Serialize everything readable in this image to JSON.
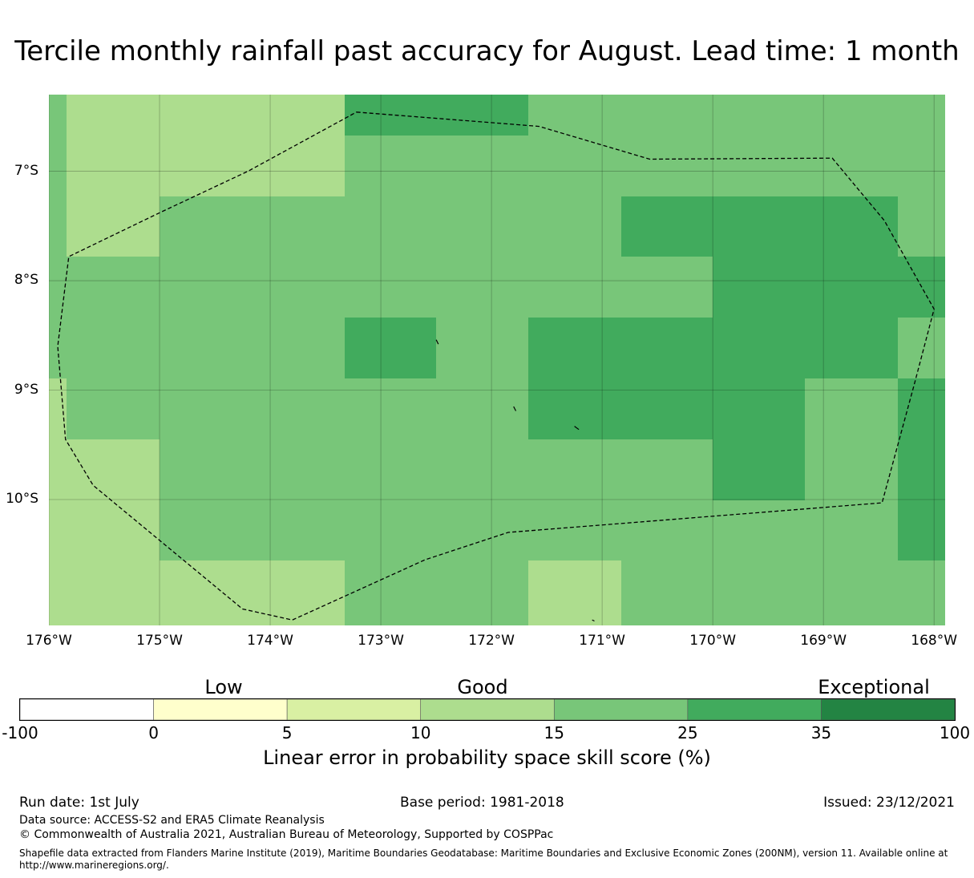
{
  "title": "Tercile monthly rainfall past accuracy for August. Lead time: 1 month",
  "map": {
    "lon_range": [
      -176,
      -167.9
    ],
    "lat_range": [
      -11.15,
      -6.3
    ],
    "lon_ticks": [
      {
        "value": -176,
        "label": "176°W"
      },
      {
        "value": -175,
        "label": "175°W"
      },
      {
        "value": -174,
        "label": "174°W"
      },
      {
        "value": -173,
        "label": "173°W"
      },
      {
        "value": -172,
        "label": "172°W"
      },
      {
        "value": -171,
        "label": "171°W"
      },
      {
        "value": -170,
        "label": "170°W"
      },
      {
        "value": -169,
        "label": "169°W"
      },
      {
        "value": -168,
        "label": "168°W"
      }
    ],
    "lat_ticks": [
      {
        "value": -7,
        "label": "7°S"
      },
      {
        "value": -8,
        "label": "8°S"
      },
      {
        "value": -9,
        "label": "9°S"
      },
      {
        "value": -10,
        "label": "10°S"
      }
    ],
    "grid_lon_edges": [
      -176,
      -175.84,
      -175,
      -174.17,
      -173.33,
      -172.5,
      -171.67,
      -170.83,
      -170,
      -169.17,
      -168.33,
      -167.9
    ],
    "grid_lat_edges": [
      -6.3,
      -6.67,
      -7.23,
      -7.78,
      -8.34,
      -8.89,
      -9.45,
      -10.01,
      -10.56,
      -11.15
    ],
    "grid_categories": [
      [
        4,
        3,
        3,
        3,
        5,
        5,
        4,
        4,
        4,
        4,
        4
      ],
      [
        4,
        3,
        3,
        3,
        4,
        4,
        4,
        4,
        4,
        4,
        4
      ],
      [
        4,
        3,
        4,
        4,
        4,
        4,
        4,
        5,
        5,
        5,
        4
      ],
      [
        4,
        4,
        4,
        4,
        4,
        4,
        4,
        4,
        5,
        5,
        5
      ],
      [
        4,
        4,
        4,
        4,
        5,
        4,
        5,
        5,
        5,
        5,
        4
      ],
      [
        3,
        4,
        4,
        4,
        4,
        4,
        5,
        5,
        5,
        4,
        5
      ],
      [
        3,
        3,
        4,
        4,
        4,
        4,
        4,
        4,
        5,
        4,
        5
      ],
      [
        3,
        3,
        4,
        4,
        4,
        4,
        4,
        4,
        4,
        4,
        5
      ],
      [
        3,
        3,
        3,
        3,
        4,
        4,
        3,
        4,
        4,
        4,
        4
      ]
    ],
    "eez_boundary": [
      [
        -173.22,
        -6.46
      ],
      [
        -171.57,
        -6.59
      ],
      [
        -170.57,
        -6.89
      ],
      [
        -168.92,
        -6.88
      ],
      [
        -168.45,
        -7.45
      ],
      [
        -168.0,
        -8.26
      ],
      [
        -168.18,
        -8.95
      ],
      [
        -168.47,
        -10.03
      ],
      [
        -171.85,
        -10.3
      ],
      [
        -172.6,
        -10.55
      ],
      [
        -173.8,
        -11.1
      ],
      [
        -174.25,
        -11.0
      ],
      [
        -175.6,
        -9.87
      ],
      [
        -175.85,
        -9.45
      ],
      [
        -175.92,
        -8.6
      ],
      [
        -175.82,
        -7.78
      ],
      [
        -175.0,
        -7.38
      ],
      [
        -174.2,
        -7.0
      ],
      [
        -173.22,
        -6.46
      ]
    ],
    "islands": [
      [
        [
          -172.5,
          -8.54
        ],
        [
          -172.48,
          -8.58
        ]
      ],
      [
        [
          -171.8,
          -9.15
        ],
        [
          -171.78,
          -9.19
        ]
      ],
      [
        [
          -171.25,
          -9.33
        ],
        [
          -171.21,
          -9.36
        ]
      ],
      [
        [
          -171.09,
          -11.1
        ],
        [
          -171.07,
          -11.11
        ]
      ]
    ]
  },
  "colorbar": {
    "categories": [
      "Low",
      "Good",
      "Exceptional"
    ],
    "colors": [
      "#ffffff",
      "#ffffcc",
      "#d9f0a3",
      "#addd8e",
      "#78c679",
      "#41ab5d",
      "#238443"
    ],
    "ticks": [
      "-100",
      "0",
      "5",
      "10",
      "15",
      "25",
      "35",
      "100"
    ],
    "label": "Linear error in probability space skill score (%)"
  },
  "footer": {
    "run_date": "Run date: 1st July",
    "base_period": "Base period: 1981-2018",
    "issued": "Issued: 23/12/2021",
    "data_source": "Data source: ACCESS-S2 and ERA5 Climate Reanalysis",
    "copyright": "© Commonwealth of Australia 2021, Australian Bureau of Meteorology, Supported by COSPPac",
    "shapefile_line1": "Shapefile data extracted from Flanders Marine Institute (2019), Maritime Boundaries Geodatabase: Maritime Boundaries and Exclusive Economic Zones (200NM), version 11. Available online at",
    "shapefile_line2": "http://www.marineregions.org/."
  }
}
